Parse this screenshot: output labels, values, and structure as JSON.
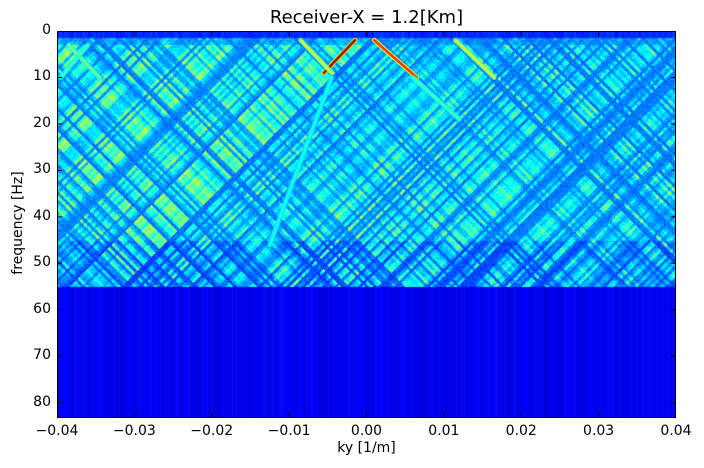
{
  "chart_data": {
    "type": "heatmap",
    "title": "Receiver-X = 1.2[Km]",
    "xlabel": "ky [1/m]",
    "ylabel": "frequency [Hz]",
    "xlim": [
      -0.04,
      0.04
    ],
    "ylim": [
      83.3,
      0
    ],
    "y_inverted": true,
    "colormap": "jet",
    "grid": false,
    "xticks": [
      "−0.04",
      "−0.03",
      "−0.02",
      "−0.01",
      "0.00",
      "0.01",
      "0.02",
      "0.03",
      "0.04"
    ],
    "xtick_values": [
      -0.04,
      -0.03,
      -0.02,
      -0.01,
      0.0,
      0.01,
      0.02,
      0.03,
      0.04
    ],
    "yticks": [
      "0",
      "10",
      "20",
      "30",
      "40",
      "50",
      "60",
      "70",
      "80"
    ],
    "ytick_values": [
      0,
      10,
      20,
      30,
      40,
      50,
      60,
      70,
      80
    ],
    "background_level_below_55Hz": 0.2,
    "background_level_above_55Hz": 0.08,
    "bright_events": [
      {
        "from": [
          -0.0015,
          2
        ],
        "to": [
          -0.0055,
          9
        ],
        "peak": 1.0
      },
      {
        "from": [
          0.001,
          2
        ],
        "to": [
          0.0065,
          10
        ],
        "peak": 0.85
      },
      {
        "from": [
          -0.0085,
          2
        ],
        "to": [
          -0.0045,
          9
        ],
        "peak": 0.6
      },
      {
        "from": [
          0.0115,
          2
        ],
        "to": [
          0.0165,
          10
        ],
        "peak": 0.6
      },
      {
        "from": [
          0.006,
          10
        ],
        "to": [
          0.012,
          19
        ],
        "peak": 0.45
      },
      {
        "from": [
          -0.0045,
          10
        ],
        "to": [
          -0.0125,
          46
        ],
        "peak": 0.4
      },
      {
        "from": [
          -0.0385,
          3
        ],
        "to": [
          -0.0345,
          10
        ],
        "peak": 0.5
      },
      {
        "from": [
          -0.036,
          3
        ],
        "to": [
          -0.0395,
          10
        ],
        "peak": 0.45
      }
    ]
  }
}
